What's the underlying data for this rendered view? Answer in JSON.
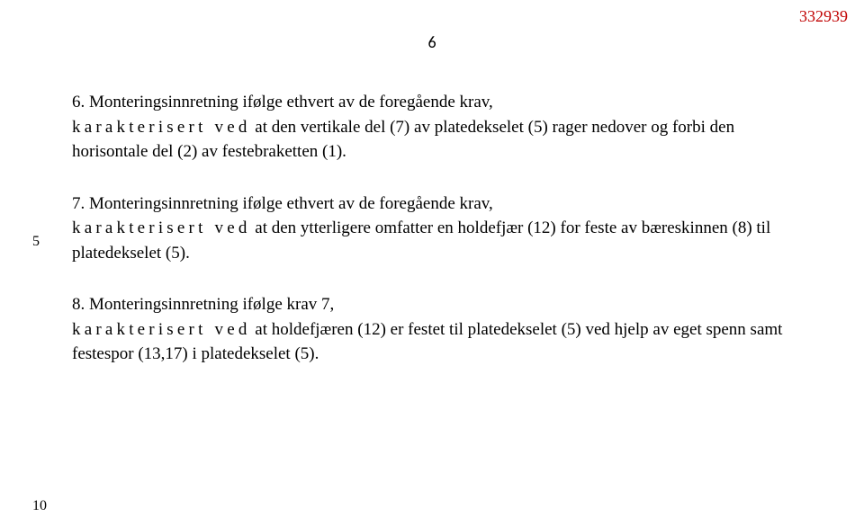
{
  "header_id": "332939",
  "header_id_color": "#c00000",
  "page_num": "6",
  "line_markers": {
    "first": "5",
    "second": "10"
  },
  "spaced_phrase": "karakterisert ved",
  "claims": {
    "c6": {
      "lead": "6. Monteringsinnretning ifølge ethvert av de foregående krav,",
      "tail": " at den vertikale del (7) av platedekselet (5) rager nedover og forbi den horisontale del (2) av festebraketten (1)."
    },
    "c7": {
      "lead": "7. Monteringsinnretning ifølge ethvert av de foregående krav,",
      "tail": " at den ytterligere omfatter en holdefjær (12) for feste av bæreskinnen (8) til platedekselet (5)."
    },
    "c8": {
      "lead": "8. Monteringsinnretning ifølge krav 7,",
      "tail": " at holdefjæren (12) er festet til platedekselet (5) ved hjelp av eget spenn samt festespor (13,17) i platedekselet (5)."
    }
  }
}
